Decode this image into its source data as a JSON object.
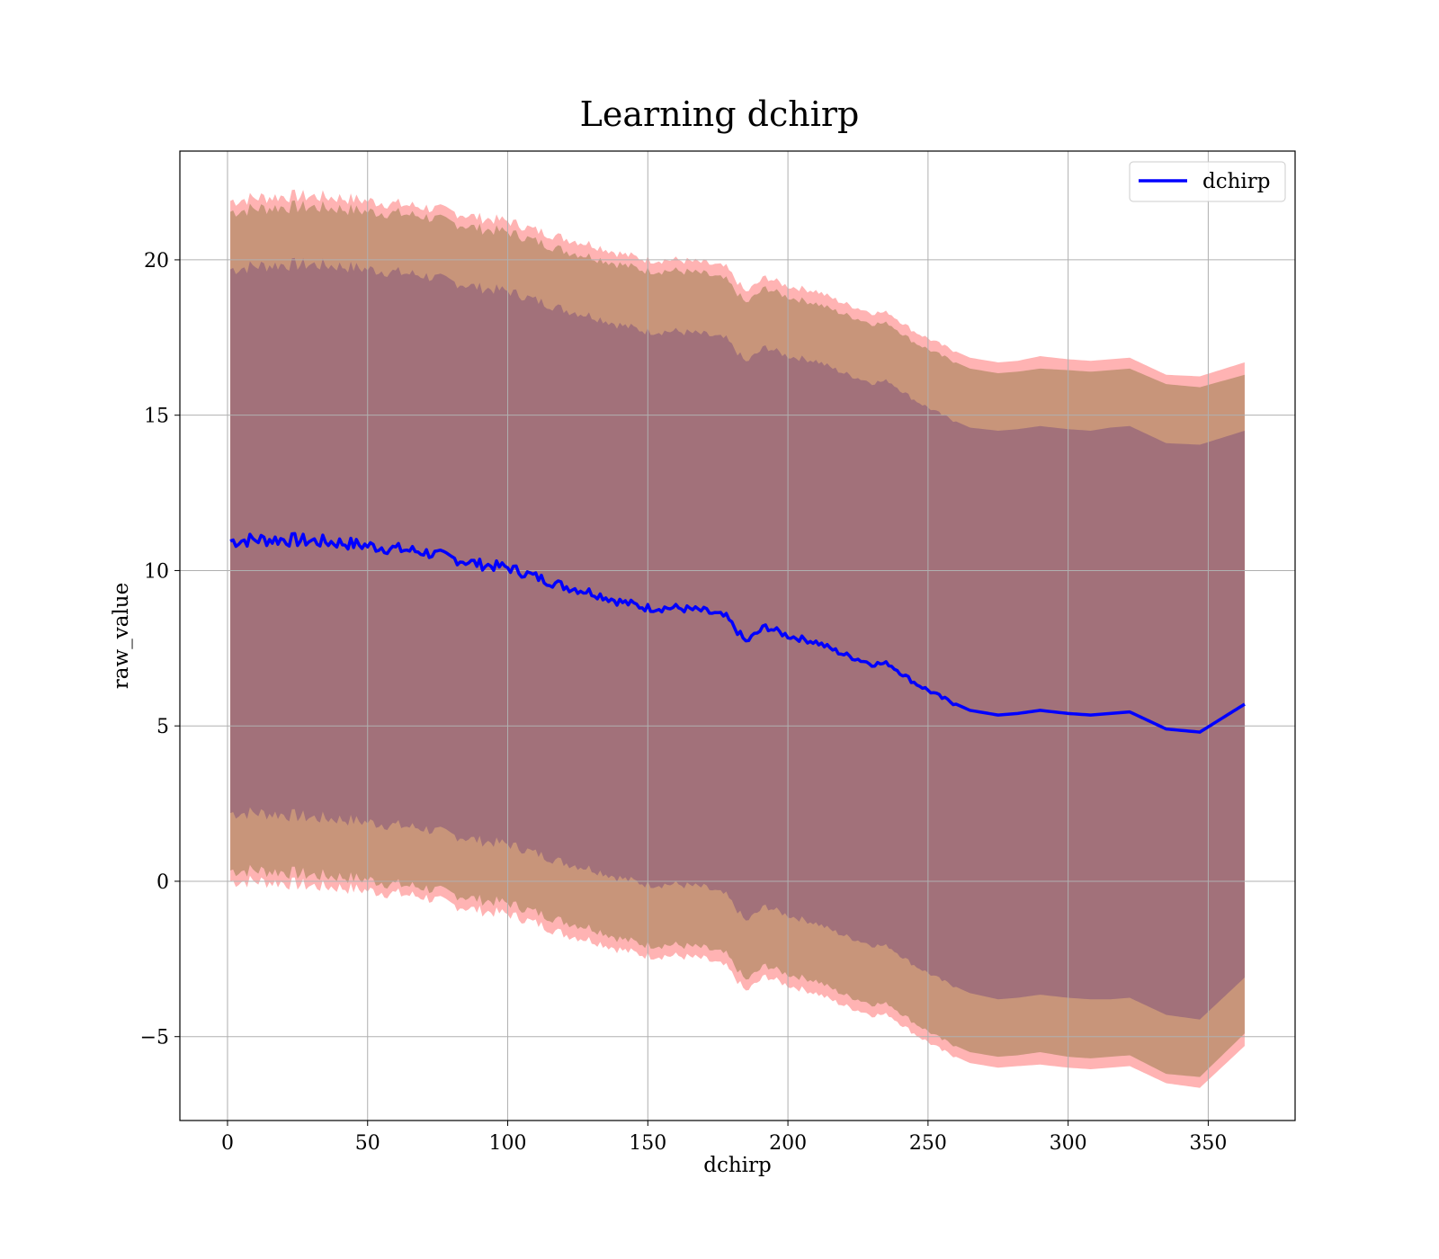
{
  "chart_data": {
    "type": "line",
    "title": "Learning dchirp",
    "xlabel": "dchirp",
    "ylabel": "raw_value",
    "xlim": [
      -17,
      381
    ],
    "ylim": [
      -7.7,
      23.5
    ],
    "xticks": [
      0,
      50,
      100,
      150,
      200,
      250,
      300,
      350
    ],
    "yticks": [
      -5,
      0,
      5,
      10,
      15,
      20
    ],
    "ytick_labels": [
      "−5",
      "0",
      "5",
      "10",
      "15",
      "20"
    ],
    "grid": true,
    "legend_position": "top-right",
    "colors": {
      "line": "#0000ff",
      "outer_band": "#ff9999",
      "middle_band": "#c8957a",
      "inner_band": "#a2717a"
    },
    "series": [
      {
        "name": "dchirp",
        "x": [
          1,
          10,
          20,
          30,
          40,
          50,
          60,
          70,
          80,
          90,
          100,
          110,
          120,
          130,
          140,
          150,
          160,
          170,
          178,
          185,
          192,
          200,
          210,
          220,
          230,
          236,
          245,
          255,
          265,
          275,
          282,
          290,
          300,
          308,
          315,
          322,
          335,
          347,
          363
        ],
        "y": [
          10.95,
          11.0,
          11.0,
          10.95,
          10.9,
          10.8,
          10.7,
          10.6,
          10.4,
          10.2,
          10.1,
          9.8,
          9.5,
          9.3,
          9.0,
          8.8,
          8.8,
          8.7,
          8.5,
          7.7,
          8.2,
          7.9,
          7.7,
          7.3,
          7.0,
          7.0,
          6.4,
          5.9,
          5.5,
          5.35,
          5.4,
          5.5,
          5.4,
          5.35,
          5.4,
          5.45,
          4.9,
          4.8,
          5.7
        ],
        "std_band_inner": [
          8.75,
          8.8,
          8.85,
          8.9,
          8.9,
          8.9,
          8.9,
          8.9,
          8.9,
          8.9,
          8.9,
          8.9,
          8.9,
          8.9,
          8.9,
          8.9,
          8.9,
          8.9,
          8.95,
          9.0,
          9.0,
          9.0,
          9.05,
          9.05,
          9.05,
          9.1,
          9.1,
          9.1,
          9.1,
          9.15,
          9.15,
          9.15,
          9.15,
          9.15,
          9.2,
          9.2,
          9.2,
          9.25,
          8.8
        ],
        "std_band_middle": [
          10.6,
          10.65,
          10.7,
          10.75,
          10.75,
          10.75,
          10.8,
          10.8,
          10.8,
          10.8,
          10.8,
          10.8,
          10.8,
          10.8,
          10.85,
          10.85,
          10.85,
          10.85,
          10.85,
          10.9,
          10.9,
          10.9,
          10.9,
          10.95,
          10.95,
          10.95,
          10.95,
          11.0,
          11.0,
          11.0,
          11.0,
          11.0,
          11.05,
          11.05,
          11.05,
          11.05,
          11.1,
          11.1,
          10.6
        ],
        "std_band_outer": [
          10.95,
          11.0,
          11.05,
          11.1,
          11.1,
          11.1,
          11.1,
          11.1,
          11.15,
          11.15,
          11.15,
          11.15,
          11.2,
          11.2,
          11.2,
          11.2,
          11.2,
          11.2,
          11.25,
          11.25,
          11.25,
          11.25,
          11.3,
          11.3,
          11.3,
          11.3,
          11.3,
          11.35,
          11.35,
          11.35,
          11.35,
          11.4,
          11.4,
          11.4,
          11.4,
          11.4,
          11.4,
          11.45,
          11.0
        ]
      }
    ]
  }
}
